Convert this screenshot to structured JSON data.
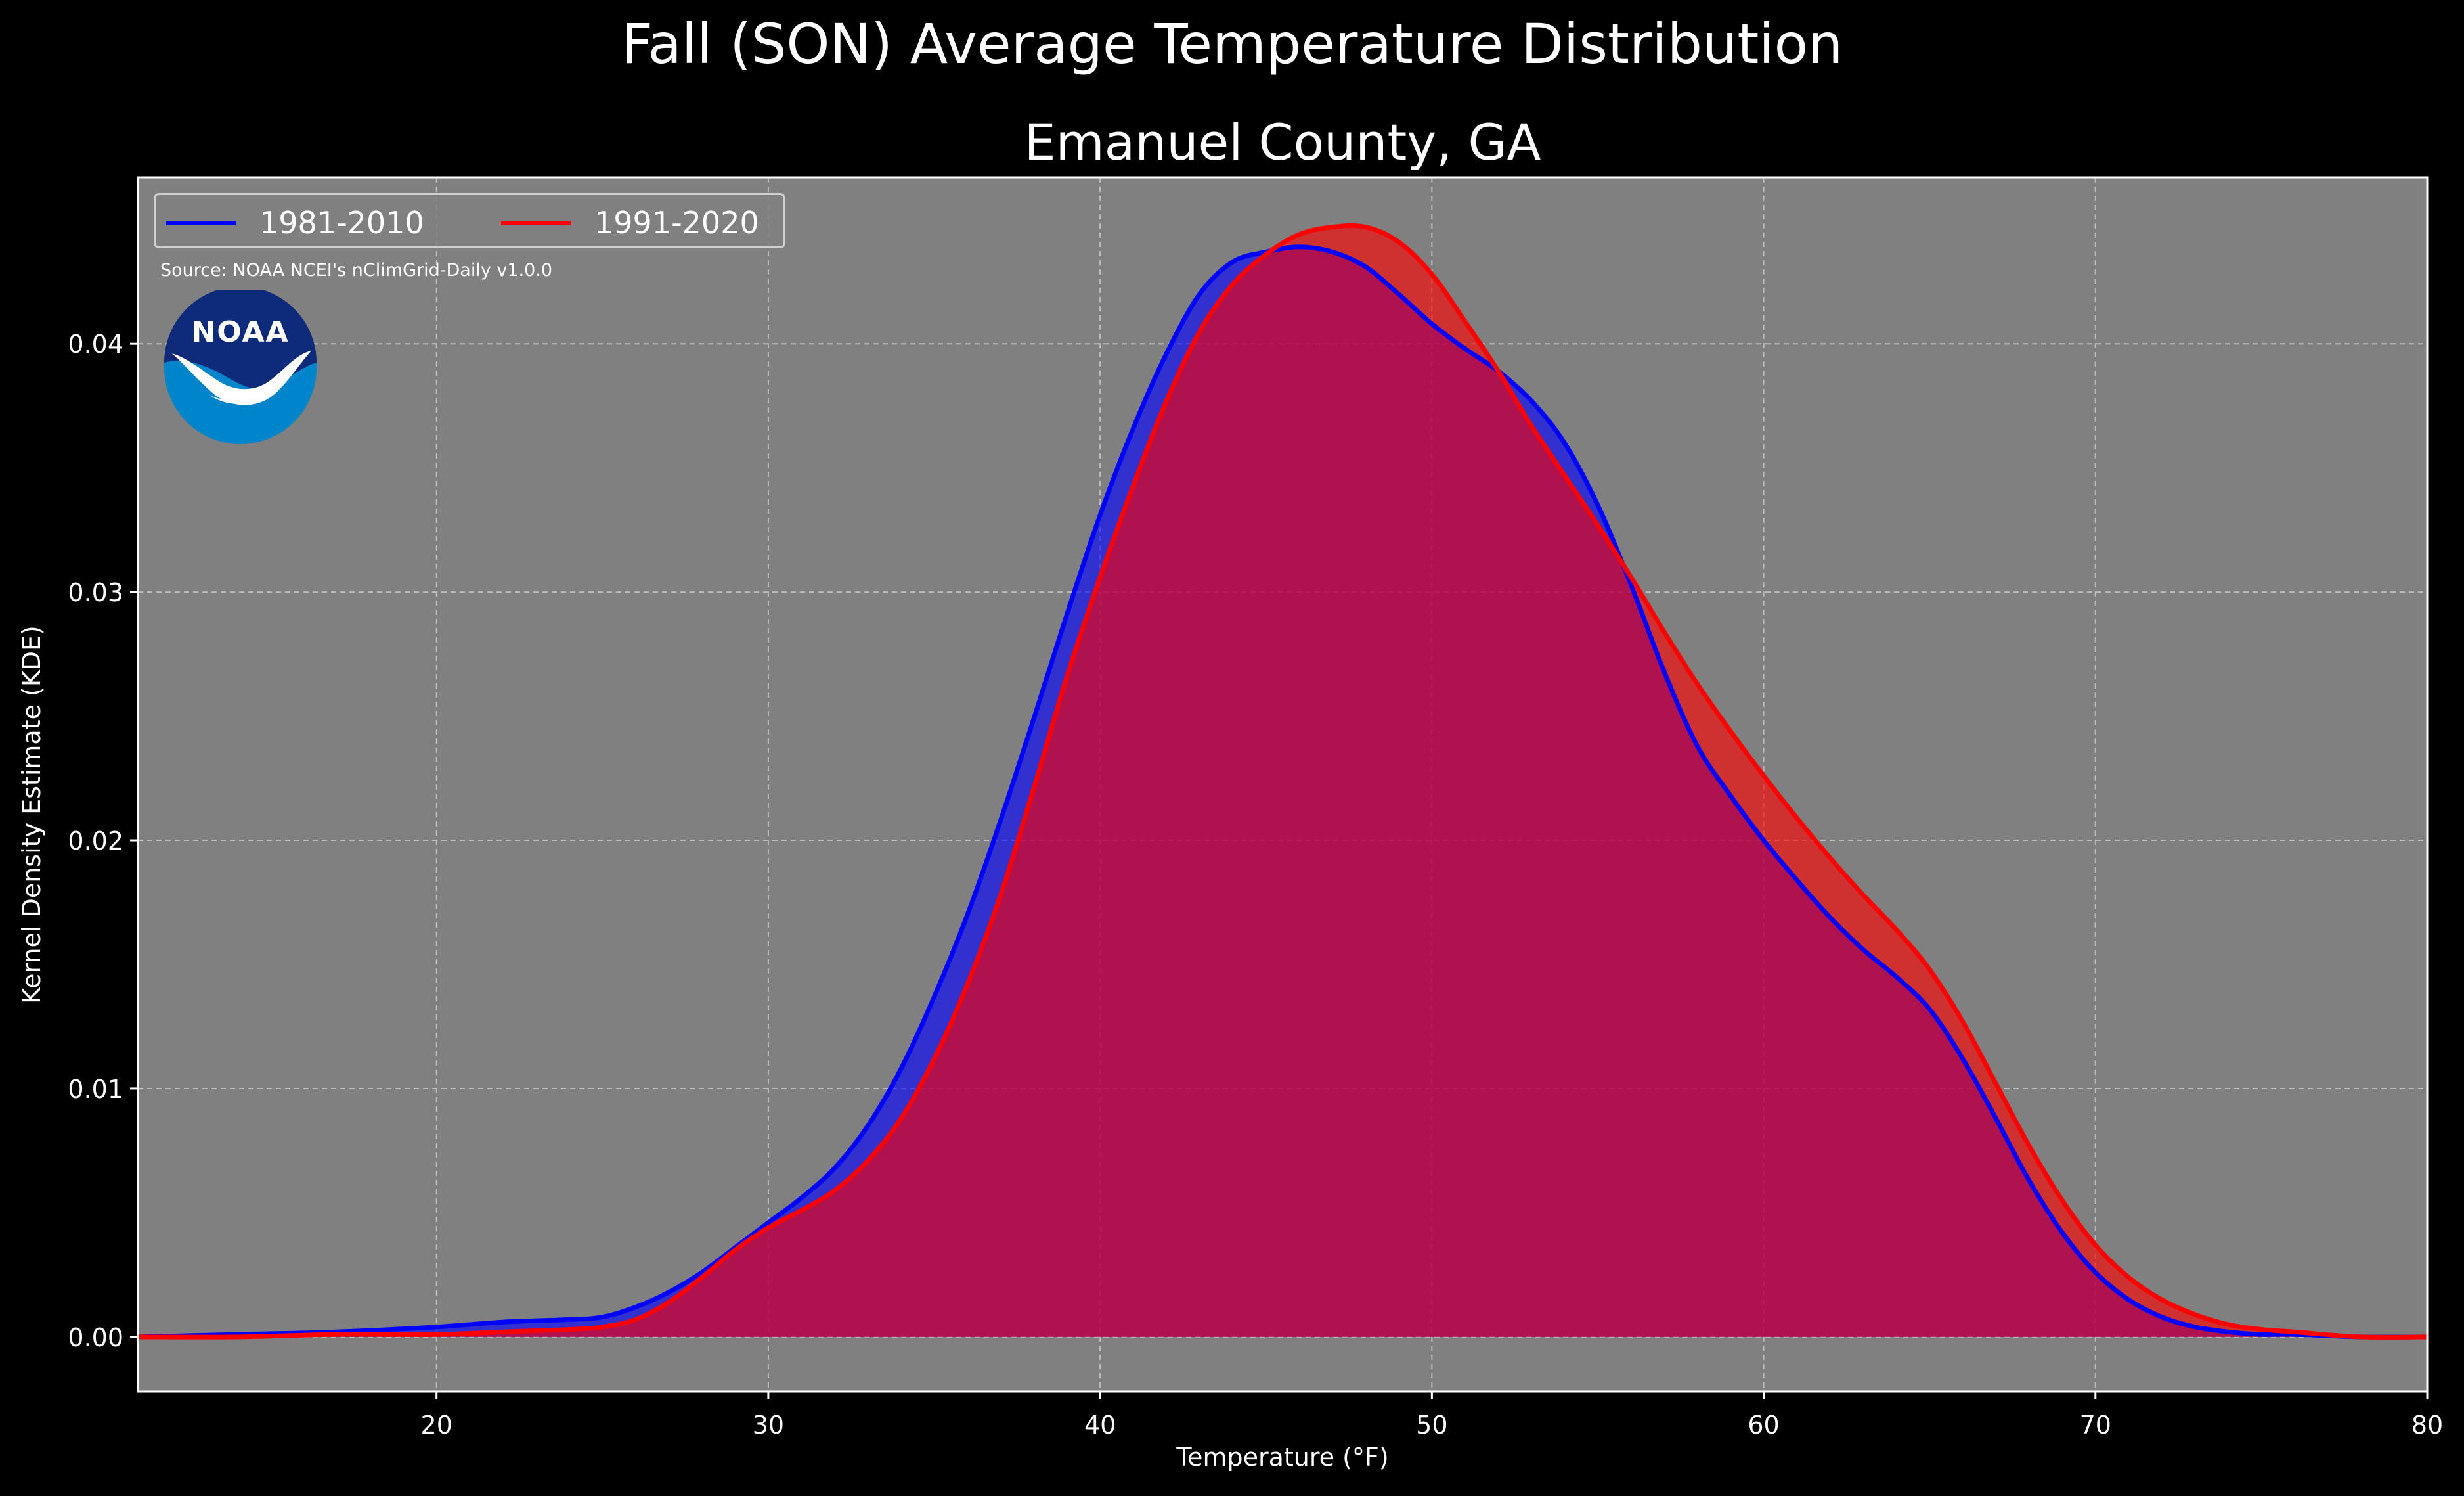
{
  "chart_data": {
    "type": "area",
    "suptitle": "Fall (SON) Average Temperature Distribution",
    "title": "Emanuel County, GA",
    "xlabel": "Temperature ($^\\circ$F)",
    "xlabel_display": "Temperature (°F)",
    "ylabel": "Kernel Density Estimate (KDE)",
    "xlim": [
      11,
      80
    ],
    "ylim": [
      -0.0022,
      0.0467
    ],
    "xticks": [
      20,
      30,
      40,
      50,
      60,
      70,
      80
    ],
    "yticks": [
      0.0,
      0.01,
      0.02,
      0.03,
      0.04
    ],
    "ytick_labels": [
      "0.00",
      "0.01",
      "0.02",
      "0.03",
      "0.04"
    ],
    "grid": true,
    "legend_position": "upper-left",
    "background_color": "#808080",
    "figure_background": "#000000",
    "source_text": "Source: NOAA NCEI's nClimGrid-Daily v1.0.0",
    "logo_text": "NOAA",
    "series": [
      {
        "name": "1981-2010",
        "color": "#0000ff",
        "x": [
          11,
          14,
          17,
          20,
          22,
          24,
          25,
          26,
          27,
          28,
          29,
          30,
          31,
          32,
          33,
          34,
          35,
          36,
          37,
          38,
          39,
          40,
          41,
          42,
          43,
          44,
          45,
          46,
          47,
          48,
          49,
          50,
          51,
          52,
          53,
          54,
          55,
          56,
          57,
          58,
          59,
          60,
          61,
          62,
          63,
          64,
          65,
          66,
          67,
          68,
          69,
          70,
          71,
          72,
          73,
          74,
          75,
          76,
          78,
          80
        ],
        "y": [
          0.0,
          0.0001,
          0.0002,
          0.0004,
          0.0006,
          0.0007,
          0.0008,
          0.0012,
          0.0018,
          0.0026,
          0.0036,
          0.0046,
          0.0056,
          0.0068,
          0.0085,
          0.0108,
          0.0137,
          0.017,
          0.0208,
          0.0249,
          0.0291,
          0.0331,
          0.0366,
          0.0396,
          0.042,
          0.0433,
          0.0437,
          0.0439,
          0.0437,
          0.0431,
          0.042,
          0.0408,
          0.0398,
          0.0389,
          0.0377,
          0.036,
          0.0335,
          0.0303,
          0.0268,
          0.0238,
          0.0218,
          0.02,
          0.0184,
          0.0169,
          0.0156,
          0.0145,
          0.0132,
          0.0112,
          0.0088,
          0.0063,
          0.0042,
          0.0026,
          0.0015,
          0.0008,
          0.0004,
          0.0002,
          0.0001,
          0.0001,
          0.0,
          0.0
        ]
      },
      {
        "name": "1991-2020",
        "color": "#ff0000",
        "x": [
          11,
          14,
          17,
          20,
          22,
          24,
          25,
          26,
          27,
          28,
          29,
          30,
          31,
          32,
          33,
          34,
          35,
          36,
          37,
          38,
          39,
          40,
          41,
          42,
          43,
          44,
          45,
          46,
          47,
          48,
          49,
          50,
          51,
          52,
          53,
          54,
          55,
          56,
          57,
          58,
          59,
          60,
          61,
          62,
          63,
          64,
          65,
          66,
          67,
          68,
          69,
          70,
          71,
          72,
          73,
          74,
          75,
          76,
          78,
          80
        ],
        "y": [
          0.0,
          0.0,
          0.0001,
          0.0001,
          0.0002,
          0.0003,
          0.0004,
          0.0007,
          0.0014,
          0.0024,
          0.0035,
          0.0044,
          0.0051,
          0.0059,
          0.0071,
          0.0088,
          0.0112,
          0.0142,
          0.0178,
          0.0221,
          0.0266,
          0.0306,
          0.0343,
          0.0377,
          0.0405,
          0.0424,
          0.0436,
          0.0444,
          0.0447,
          0.0447,
          0.0441,
          0.0428,
          0.0409,
          0.0389,
          0.0367,
          0.0347,
          0.0327,
          0.0306,
          0.0284,
          0.0263,
          0.0244,
          0.0226,
          0.0209,
          0.0193,
          0.0178,
          0.0164,
          0.0148,
          0.0127,
          0.0102,
          0.0077,
          0.0055,
          0.0037,
          0.0024,
          0.0015,
          0.0009,
          0.0005,
          0.0003,
          0.0002,
          0.0,
          0.0
        ]
      }
    ]
  }
}
